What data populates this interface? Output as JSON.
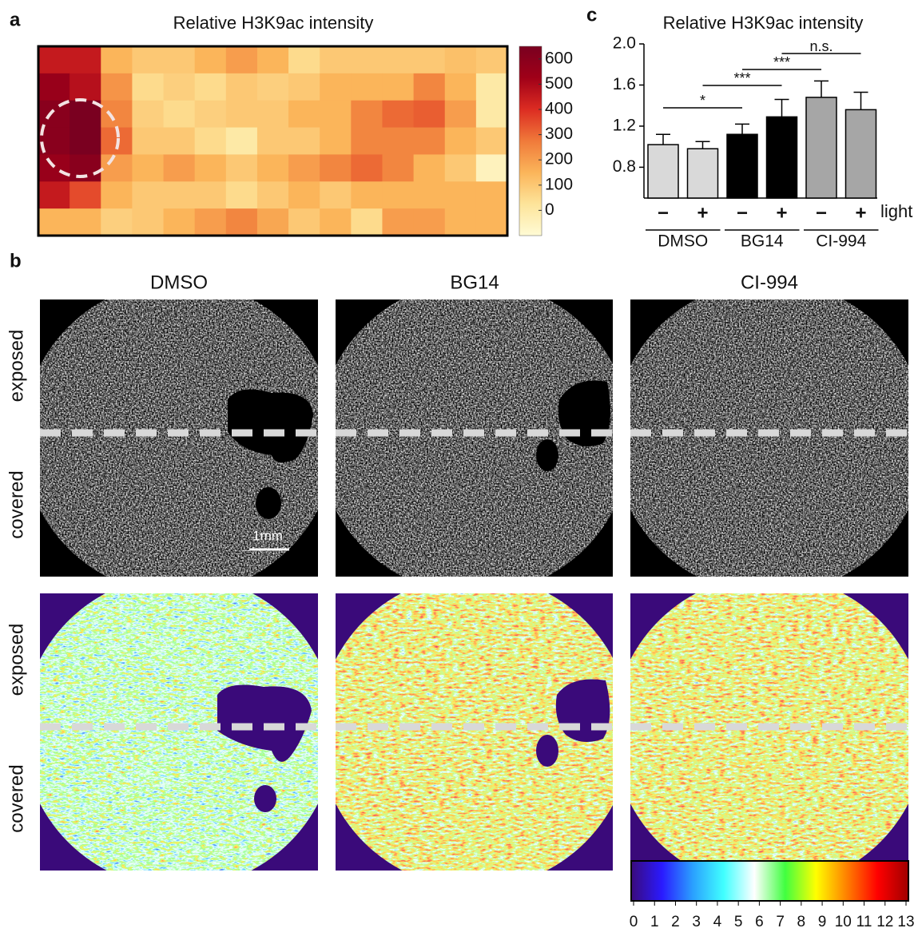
{
  "panel_labels": [
    "a",
    "b",
    "c"
  ],
  "chart_data": [
    {
      "type": "heatmap",
      "title": "Relative H3K9ac intensity",
      "values": [
        [
          450,
          450,
          150,
          100,
          100,
          150,
          200,
          150,
          50,
          100,
          100,
          100,
          100,
          120,
          100
        ],
        [
          550,
          480,
          220,
          50,
          80,
          50,
          100,
          80,
          100,
          150,
          150,
          150,
          250,
          150,
          0
        ],
        [
          600,
          650,
          250,
          80,
          50,
          80,
          100,
          100,
          150,
          150,
          250,
          300,
          320,
          200,
          0
        ],
        [
          600,
          650,
          300,
          100,
          100,
          50,
          0,
          100,
          100,
          150,
          250,
          250,
          250,
          150,
          100
        ],
        [
          550,
          600,
          200,
          150,
          200,
          150,
          100,
          150,
          200,
          250,
          300,
          250,
          150,
          100,
          -50
        ],
        [
          450,
          350,
          150,
          100,
          100,
          100,
          50,
          100,
          150,
          100,
          150,
          150,
          150,
          150,
          150
        ],
        [
          150,
          150,
          80,
          100,
          150,
          200,
          250,
          180,
          100,
          150,
          50,
          200,
          200,
          150,
          150
        ]
      ],
      "clim": [
        -100,
        650
      ],
      "colorbar_ticks": [
        0,
        100,
        200,
        300,
        400,
        500,
        600
      ],
      "colormap": [
        "#fffbd5",
        "#fde49a",
        "#fbb55a",
        "#f07a3a",
        "#dc2c22",
        "#a00018",
        "#7a0020"
      ]
    },
    {
      "type": "bar",
      "title": "Relative H3K9ac intensity",
      "categories": [
        "−",
        "+",
        "−",
        "+",
        "−",
        "+"
      ],
      "x_label": "light",
      "groups": [
        "DMSO",
        "BG14",
        "CI-994"
      ],
      "values": [
        1.02,
        0.98,
        1.12,
        1.29,
        1.48,
        1.36
      ],
      "errors": [
        0.1,
        0.07,
        0.1,
        0.17,
        0.16,
        0.17
      ],
      "colors": [
        "#d9d9d9",
        "#d9d9d9",
        "#000000",
        "#000000",
        "#a6a6a6",
        "#a6a6a6"
      ],
      "ylim": [
        0.5,
        2.0
      ],
      "yticks": [
        0.8,
        1.2,
        1.6,
        {
          "value": 2.0,
          "label": "2.0"
        }
      ],
      "annotations": [
        {
          "text": "*",
          "from": 0,
          "to": 2
        },
        {
          "text": "***",
          "from": 1,
          "to": 3
        },
        {
          "text": "***",
          "from": 2,
          "to": 4
        },
        {
          "text": "n.s.",
          "from": 3,
          "to": 5
        }
      ]
    }
  ],
  "images": {
    "columns": [
      "DMSO",
      "BG14",
      "CI-994"
    ],
    "rows": [
      "exposed",
      "covered",
      "exposed",
      "covered"
    ],
    "scale_bar": "1mm",
    "colorbar": {
      "lim": [
        0,
        13
      ],
      "ticks": [
        0,
        1,
        2,
        3,
        4,
        5,
        6,
        7,
        8,
        9,
        10,
        11,
        12,
        13
      ],
      "colormap": [
        "#3a0a7a",
        "#2a1aff",
        "#2aa0ff",
        "#40ffff",
        "#ffffff",
        "#40ff40",
        "#ffff00",
        "#ff8000",
        "#ff0000",
        "#a00000"
      ]
    }
  }
}
